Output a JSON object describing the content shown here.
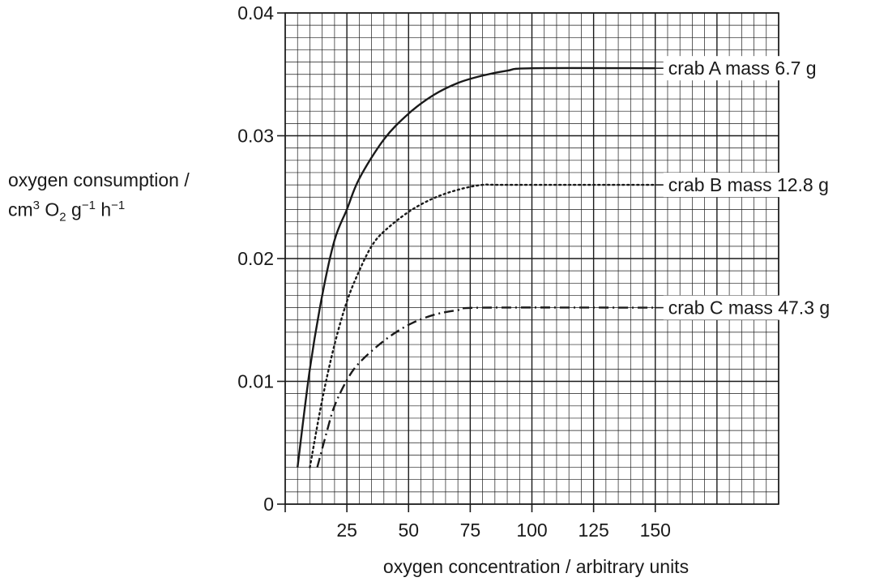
{
  "chart_data": {
    "type": "line",
    "title": "",
    "xlabel": "oxygen concentration / arbitrary units",
    "ylabel": {
      "line1": "oxygen consumption /",
      "unit_base": "cm",
      "unit_exp1": "3",
      "unit_o": "O",
      "unit_sub": "2",
      "unit_g": "g",
      "unit_exp2": "−1",
      "unit_h": "h",
      "unit_exp3": "−1"
    },
    "xlim": [
      0,
      200
    ],
    "ylim": [
      0,
      0.04
    ],
    "x_ticks": [
      "25",
      "50",
      "75",
      "100",
      "125",
      "150"
    ],
    "y_ticks": [
      "0",
      "0.01",
      "0.02",
      "0.03",
      "0.04"
    ],
    "grid": true,
    "series": [
      {
        "name": "crab A mass 6.7 g",
        "style": "solid",
        "x": [
          5,
          10,
          15,
          20,
          25,
          30,
          40,
          50,
          60,
          70,
          80,
          90,
          100,
          150
        ],
        "y": [
          0.003,
          0.011,
          0.017,
          0.0215,
          0.024,
          0.0265,
          0.0297,
          0.0318,
          0.0333,
          0.0343,
          0.0349,
          0.0353,
          0.0355,
          0.0355
        ]
      },
      {
        "name": "crab B mass 12.8 g",
        "style": "dotted",
        "x": [
          10,
          15,
          20,
          25,
          30,
          35,
          40,
          50,
          60,
          70,
          80,
          90,
          150
        ],
        "y": [
          0.003,
          0.0085,
          0.013,
          0.0165,
          0.019,
          0.021,
          0.0222,
          0.0238,
          0.0249,
          0.0256,
          0.026,
          0.026,
          0.026
        ]
      },
      {
        "name": "crab C mass 47.3 g",
        "style": "dashdot",
        "x": [
          13,
          17,
          20,
          25,
          30,
          40,
          50,
          60,
          70,
          80,
          150
        ],
        "y": [
          0.003,
          0.006,
          0.008,
          0.0101,
          0.0115,
          0.0133,
          0.0146,
          0.0154,
          0.0158,
          0.016,
          0.016
        ]
      }
    ]
  }
}
